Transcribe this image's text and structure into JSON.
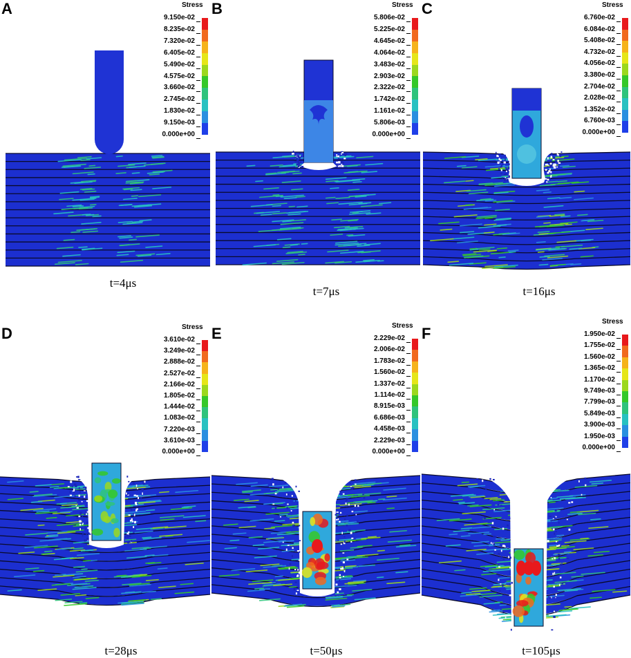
{
  "panels": [
    {
      "letter": "A",
      "legend_title": "Stress",
      "legend_ticks": [
        "9.150e-02",
        "8.235e-02",
        "7.320e-02",
        "6.405e-02",
        "5.490e-02",
        "4.575e-02",
        "3.660e-02",
        "2.745e-02",
        "1.830e-02",
        "9.150e-03",
        "0.000e+00"
      ],
      "caption": "t=4μs"
    },
    {
      "letter": "B",
      "legend_title": "Stress",
      "legend_ticks": [
        "5.806e-02",
        "5.225e-02",
        "4.645e-02",
        "4.064e-02",
        "3.483e-02",
        "2.903e-02",
        "2.322e-02",
        "1.742e-02",
        "1.161e-02",
        "5.806e-03",
        "0.000e+00"
      ],
      "caption": "t=7μs"
    },
    {
      "letter": "C",
      "legend_title": "Stress",
      "legend_ticks": [
        "6.760e-02",
        "6.084e-02",
        "5.408e-02",
        "4.732e-02",
        "4.056e-02",
        "3.380e-02",
        "2.704e-02",
        "2.028e-02",
        "1.352e-02",
        "6.760e-03",
        "0.000e+00"
      ],
      "caption": "t=16μs"
    },
    {
      "letter": "D",
      "legend_title": "Stress",
      "legend_ticks": [
        "3.610e-02",
        "3.249e-02",
        "2.888e-02",
        "2.527e-02",
        "2.166e-02",
        "1.805e-02",
        "1.444e-02",
        "1.083e-02",
        "7.220e-03",
        "3.610e-03",
        "0.000e+00"
      ],
      "caption": "t=28μs"
    },
    {
      "letter": "E",
      "legend_title": "Stress",
      "legend_ticks": [
        "2.229e-02",
        "2.006e-02",
        "1.783e-02",
        "1.560e-02",
        "1.337e-02",
        "1.114e-02",
        "8.915e-03",
        "6.686e-03",
        "4.458e-03",
        "2.229e-03",
        "0.000e+00"
      ],
      "caption": "t=50μs"
    },
    {
      "letter": "F",
      "legend_title": "Stress",
      "legend_ticks": [
        "1.950e-02",
        "1.755e-02",
        "1.560e-02",
        "1.365e-02",
        "1.170e-02",
        "9.749e-03",
        "7.799e-03",
        "5.849e-03",
        "3.900e-03",
        "1.950e-03",
        "0.000e+00"
      ],
      "caption": "t=105μs"
    }
  ],
  "colormap": [
    "#e8191c",
    "#f16a1e",
    "#f6b31b",
    "#e6e619",
    "#9cd81e",
    "#35c829",
    "#2fc37c",
    "#28c1c1",
    "#2a8fe0",
    "#1f3fe8"
  ],
  "colors": {
    "target": "#1c2fd0",
    "target_dark": "#1a24b8",
    "layer_line": "#0a0a2a",
    "projectile": "#1f33d4",
    "projectile_light": "#3d86e6"
  }
}
